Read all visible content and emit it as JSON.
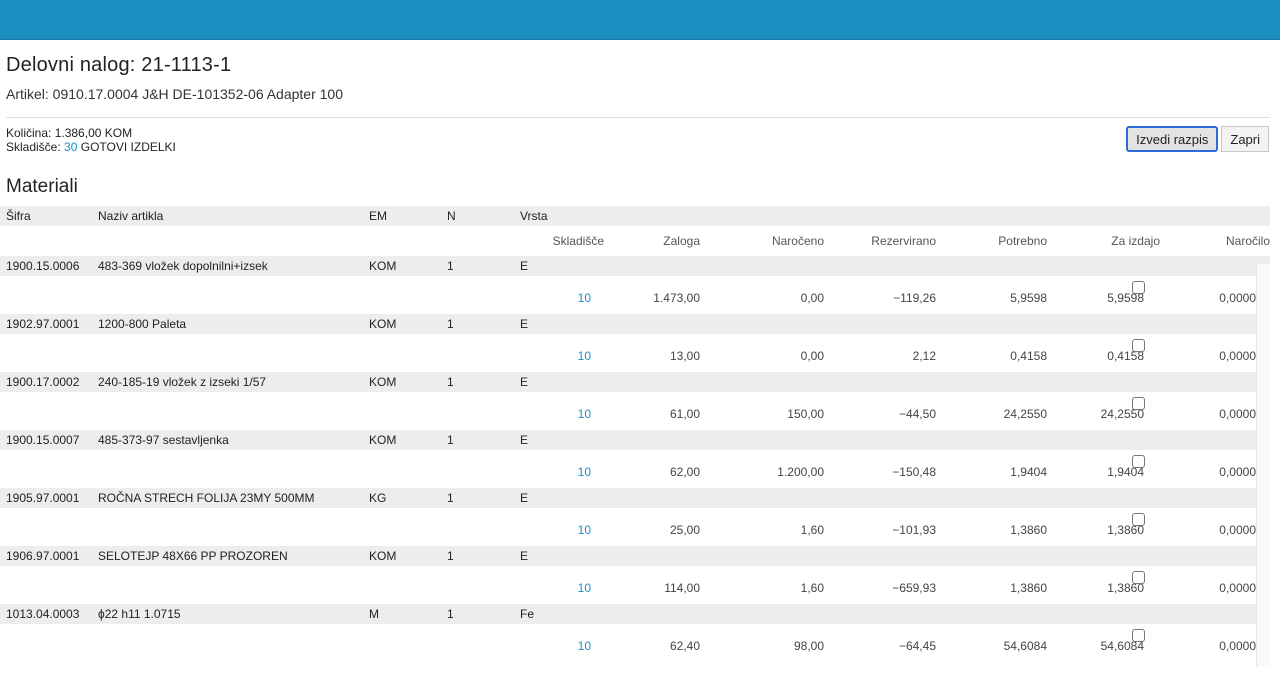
{
  "header": {
    "title": "Delovni nalog: 21-1113-1",
    "article": "Artikel: 0910.17.0004 J&H DE-101352-06 Adapter 100"
  },
  "info": {
    "kolicina_label": "Količina:",
    "kolicina_value": "1.386,00 KOM",
    "skladisce_label": "Skladišče:",
    "skladisce_code": "30",
    "skladisce_name": "GOTOVI IZDELKI"
  },
  "buttons": {
    "izvedi": "Izvedi razpis",
    "zapri": "Zapri"
  },
  "materials_title": "Materiali",
  "columns": {
    "sifra": "Šifra",
    "naziv": "Naziv artikla",
    "em": "EM",
    "n": "N",
    "vrsta": "Vrsta",
    "skladisce": "Skladišče",
    "zaloga": "Zaloga",
    "naroceno": "Naročeno",
    "rezervirano": "Rezervirano",
    "potrebno": "Potrebno",
    "za_izdajo": "Za izdajo",
    "narocilo": "Naročilo"
  },
  "materials": [
    {
      "sifra": "1900.15.0006",
      "naziv": "483-369 vložek dopolnilni+izsek",
      "em": "KOM",
      "n": "1",
      "vrsta": "E",
      "skladisce": "10",
      "zaloga": "1.473,00",
      "naroceno": "0,00",
      "rezervirano": "−119,26",
      "potrebno": "5,9598",
      "za_izdajo": "5,9598",
      "narocilo": "0,0000"
    },
    {
      "sifra": "1902.97.0001",
      "naziv": "1200-800 Paleta",
      "em": "KOM",
      "n": "1",
      "vrsta": "E",
      "skladisce": "10",
      "zaloga": "13,00",
      "naroceno": "0,00",
      "rezervirano": "2,12",
      "potrebno": "0,4158",
      "za_izdajo": "0,4158",
      "narocilo": "0,0000"
    },
    {
      "sifra": "1900.17.0002",
      "naziv": "240-185-19 vložek z izseki 1/57",
      "em": "KOM",
      "n": "1",
      "vrsta": "E",
      "skladisce": "10",
      "zaloga": "61,00",
      "naroceno": "150,00",
      "rezervirano": "−44,50",
      "potrebno": "24,2550",
      "za_izdajo": "24,2550",
      "narocilo": "0,0000"
    },
    {
      "sifra": "1900.15.0007",
      "naziv": "485-373-97 sestavljenka",
      "em": "KOM",
      "n": "1",
      "vrsta": "E",
      "skladisce": "10",
      "zaloga": "62,00",
      "naroceno": "1.200,00",
      "rezervirano": "−150,48",
      "potrebno": "1,9404",
      "za_izdajo": "1,9404",
      "narocilo": "0,0000"
    },
    {
      "sifra": "1905.97.0001",
      "naziv": "ROČNA STRECH FOLIJA 23MY 500MM",
      "em": "KG",
      "n": "1",
      "vrsta": "E",
      "skladisce": "10",
      "zaloga": "25,00",
      "naroceno": "1,60",
      "rezervirano": "−101,93",
      "potrebno": "1,3860",
      "za_izdajo": "1,3860",
      "narocilo": "0,0000"
    },
    {
      "sifra": "1906.97.0001",
      "naziv": "SELOTEJP 48X66 PP PROZOREN",
      "em": "KOM",
      "n": "1",
      "vrsta": "E",
      "skladisce": "10",
      "zaloga": "114,00",
      "naroceno": "1,60",
      "rezervirano": "−659,93",
      "potrebno": "1,3860",
      "za_izdajo": "1,3860",
      "narocilo": "0,0000"
    },
    {
      "sifra": "1013.04.0003",
      "naziv": "ϕ22 h11 1.0715",
      "em": "M",
      "n": "1",
      "vrsta": "Fe",
      "skladisce": "10",
      "zaloga": "62,40",
      "naroceno": "98,00",
      "rezervirano": "−64,45",
      "potrebno": "54,6084",
      "za_izdajo": "54,6084",
      "narocilo": "0,0000"
    }
  ]
}
